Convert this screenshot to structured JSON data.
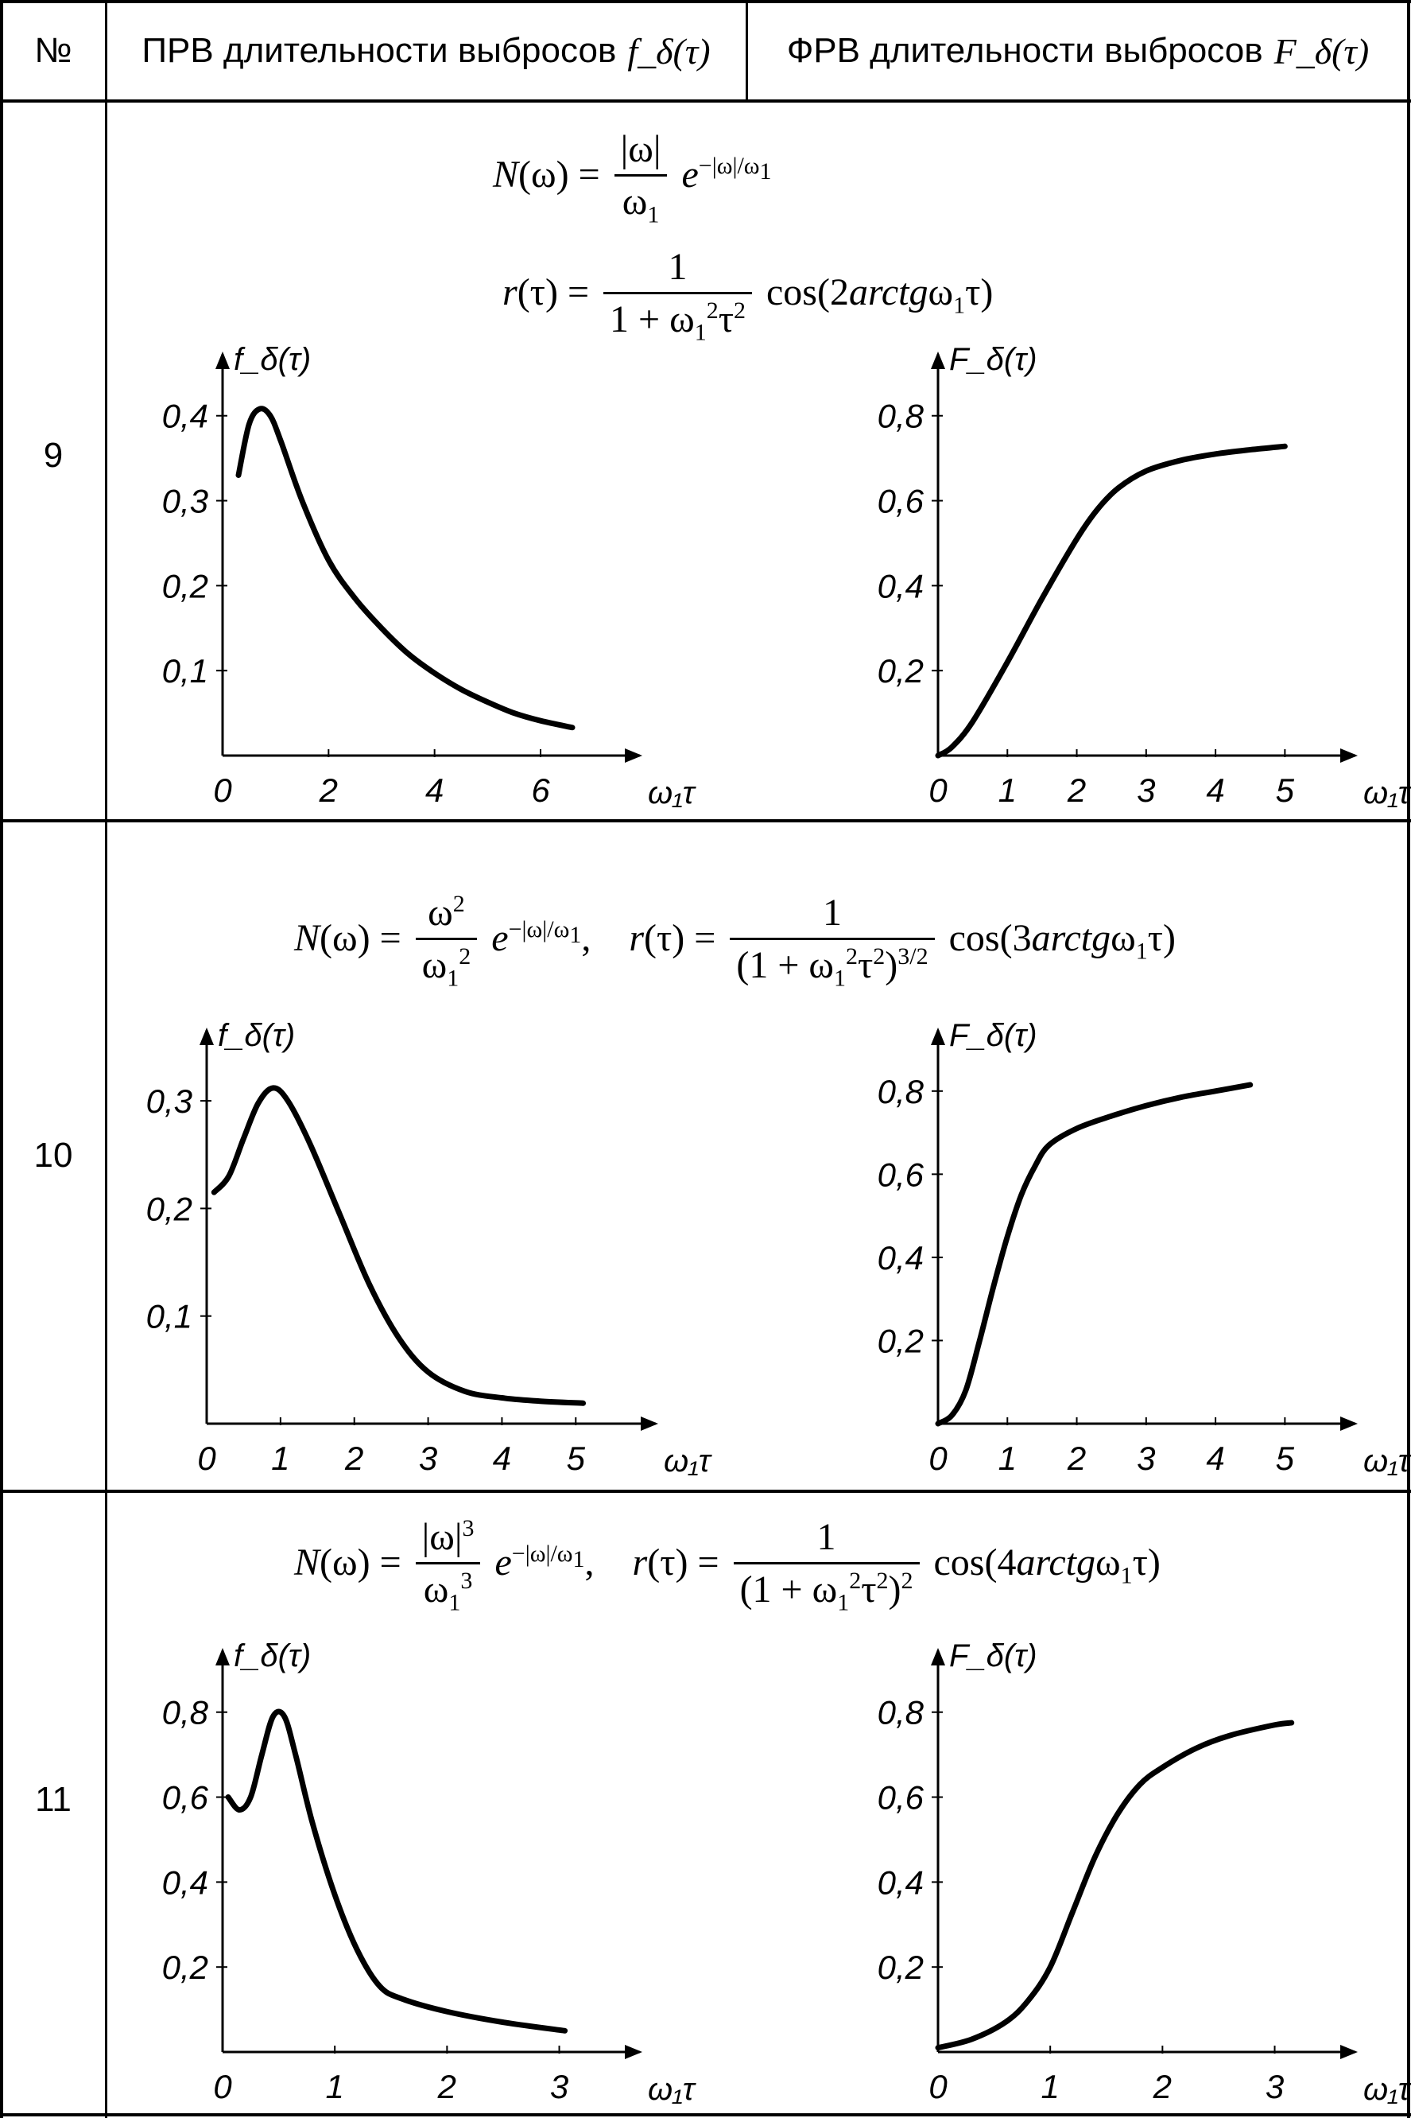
{
  "header": {
    "col_num": "№",
    "col_pdf": "ПРВ длительности выбросов",
    "col_pdf_sym": "f_δ(τ)",
    "col_cdf": "ФРВ длительности выбросов",
    "col_cdf_sym": "F_δ(τ)"
  },
  "rows": [
    {
      "num": "9",
      "N_formula": "N(ω) = |ω|/ω₁ · e^(−|ω|/ω₁)",
      "r_formula": "r(τ) = 1/(1 + ω₁²τ²) · cos(2arctgω₁τ)"
    },
    {
      "num": "10",
      "N_formula": "N(ω) = ω²/ω₁² · e^(−|ω|/ω₁)",
      "r_formula": "r(τ) = 1/(1 + ω₁²τ²)^(3/2) · cos(3arctgω₁τ)"
    },
    {
      "num": "11",
      "N_formula": "N(ω) = |ω|³/ω₁³ · e^(−|ω|/ω₁)",
      "r_formula": "r(τ) = 1/(1 + ω₁²τ²)² · cos(4arctgω₁τ)"
    }
  ],
  "chart_data": [
    {
      "type": "line",
      "row": "9",
      "ylabel": "f_δ(τ)",
      "xlabel": "ω₁τ",
      "x_ticks": [
        "0",
        "2",
        "4",
        "6"
      ],
      "y_ticks": [
        "0,1",
        "0,2",
        "0,3",
        "0,4"
      ],
      "xlim": [
        0,
        7.2
      ],
      "ylim": [
        0,
        0.44
      ],
      "series": [
        {
          "x": [
            0.3,
            0.5,
            0.7,
            0.9,
            1.1,
            1.5,
            2.0,
            2.5,
            3.0,
            3.5,
            4.0,
            4.5,
            5.0,
            5.5,
            6.0,
            6.6
          ],
          "y": [
            0.33,
            0.39,
            0.408,
            0.4,
            0.37,
            0.3,
            0.23,
            0.185,
            0.15,
            0.12,
            0.097,
            0.078,
            0.063,
            0.05,
            0.041,
            0.033
          ]
        }
      ]
    },
    {
      "type": "line",
      "row": "9",
      "ylabel": "F_δ(τ)",
      "xlabel": "ω₁τ",
      "x_ticks": [
        "0",
        "1",
        "2",
        "3",
        "4",
        "5"
      ],
      "y_ticks": [
        "0,2",
        "0,4",
        "0,6",
        "0,8"
      ],
      "xlim": [
        0,
        5.5
      ],
      "ylim": [
        0,
        0.88
      ],
      "series": [
        {
          "x": [
            0,
            0.2,
            0.5,
            1.0,
            1.5,
            2.0,
            2.3,
            2.6,
            3.0,
            3.5,
            4.0,
            4.5,
            5.0
          ],
          "y": [
            0,
            0.02,
            0.08,
            0.22,
            0.37,
            0.51,
            0.58,
            0.63,
            0.67,
            0.695,
            0.71,
            0.72,
            0.728
          ]
        }
      ]
    },
    {
      "type": "line",
      "row": "10",
      "ylabel": "f_δ(τ)",
      "xlabel": "ω₁τ",
      "x_ticks": [
        "0",
        "1",
        "2",
        "3",
        "4",
        "5"
      ],
      "y_ticks": [
        "0,1",
        "0,2",
        "0,3"
      ],
      "xlim": [
        0,
        5.6
      ],
      "ylim": [
        0,
        0.34
      ],
      "series": [
        {
          "x": [
            0.1,
            0.3,
            0.5,
            0.7,
            0.9,
            1.1,
            1.4,
            1.8,
            2.2,
            2.6,
            3.0,
            3.5,
            4.0,
            4.5,
            5.1
          ],
          "y": [
            0.215,
            0.23,
            0.265,
            0.298,
            0.312,
            0.3,
            0.26,
            0.195,
            0.13,
            0.08,
            0.048,
            0.03,
            0.024,
            0.021,
            0.019
          ]
        }
      ]
    },
    {
      "type": "line",
      "row": "10",
      "ylabel": "F_δ(τ)",
      "xlabel": "ω₁τ",
      "x_ticks": [
        "0",
        "1",
        "2",
        "3",
        "4",
        "5"
      ],
      "y_ticks": [
        "0,2",
        "0,4",
        "0,6",
        "0,8"
      ],
      "xlim": [
        0,
        5.5
      ],
      "ylim": [
        0,
        0.88
      ],
      "series": [
        {
          "x": [
            0,
            0.2,
            0.4,
            0.6,
            0.8,
            1.0,
            1.2,
            1.4,
            1.6,
            2.0,
            2.5,
            3.0,
            3.5,
            4.0,
            4.5
          ],
          "y": [
            0,
            0.02,
            0.08,
            0.2,
            0.33,
            0.45,
            0.55,
            0.62,
            0.67,
            0.71,
            0.74,
            0.765,
            0.785,
            0.8,
            0.815
          ]
        }
      ]
    },
    {
      "type": "line",
      "row": "11",
      "ylabel": "f_δ(τ)",
      "xlabel": "ω₁τ",
      "x_ticks": [
        "0",
        "1",
        "2",
        "3"
      ],
      "y_ticks": [
        "0,2",
        "0,4",
        "0,6",
        "0,8"
      ],
      "xlim": [
        0,
        3.4
      ],
      "ylim": [
        0,
        0.88
      ],
      "series": [
        {
          "x": [
            0.05,
            0.15,
            0.25,
            0.35,
            0.45,
            0.55,
            0.65,
            0.8,
            1.0,
            1.2,
            1.4,
            1.6,
            2.0,
            2.5,
            3.05
          ],
          "y": [
            0.6,
            0.57,
            0.6,
            0.7,
            0.79,
            0.79,
            0.7,
            0.54,
            0.37,
            0.24,
            0.155,
            0.125,
            0.095,
            0.07,
            0.05
          ]
        }
      ]
    },
    {
      "type": "line",
      "row": "11",
      "ylabel": "F_δ(τ)",
      "xlabel": "ω₁τ",
      "x_ticks": [
        "0",
        "1",
        "2",
        "3"
      ],
      "y_ticks": [
        "0,2",
        "0,4",
        "0,6",
        "0,8"
      ],
      "xlim": [
        0,
        3.4
      ],
      "ylim": [
        0,
        0.88
      ],
      "series": [
        {
          "x": [
            0,
            0.3,
            0.6,
            0.8,
            1.0,
            1.2,
            1.4,
            1.6,
            1.8,
            2.0,
            2.3,
            2.6,
            3.0,
            3.15
          ],
          "y": [
            0.01,
            0.03,
            0.07,
            0.12,
            0.2,
            0.33,
            0.46,
            0.56,
            0.63,
            0.67,
            0.715,
            0.745,
            0.77,
            0.775
          ]
        }
      ]
    }
  ]
}
